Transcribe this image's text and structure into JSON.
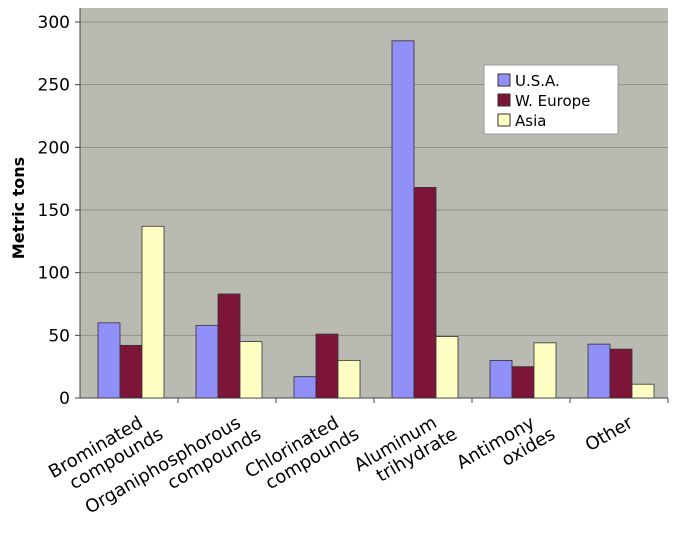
{
  "chart_data": {
    "type": "bar",
    "title": "",
    "xlabel": "",
    "ylabel": "Metric tons",
    "ylim": [
      0,
      300
    ],
    "yticks": [
      0,
      50,
      100,
      150,
      200,
      250,
      300
    ],
    "grid": true,
    "legend_position": "top-right",
    "categories": [
      [
        "Brominated",
        "compounds"
      ],
      [
        "Organiphosphorous",
        "compounds"
      ],
      [
        "Chlorinated",
        "compounds"
      ],
      [
        "Aluminum",
        "trihydrate"
      ],
      [
        "Antimony",
        "oxides"
      ],
      [
        "Other"
      ]
    ],
    "series": [
      {
        "name": "U.S.A.",
        "color": "#9090f8",
        "values": [
          60,
          58,
          17,
          285,
          30,
          43
        ]
      },
      {
        "name": "W. Europe",
        "color": "#7c1538",
        "values": [
          42,
          83,
          51,
          168,
          25,
          39
        ]
      },
      {
        "name": "Asia",
        "color": "#ffffc4",
        "values": [
          137,
          45,
          30,
          49,
          44,
          11
        ]
      }
    ]
  }
}
